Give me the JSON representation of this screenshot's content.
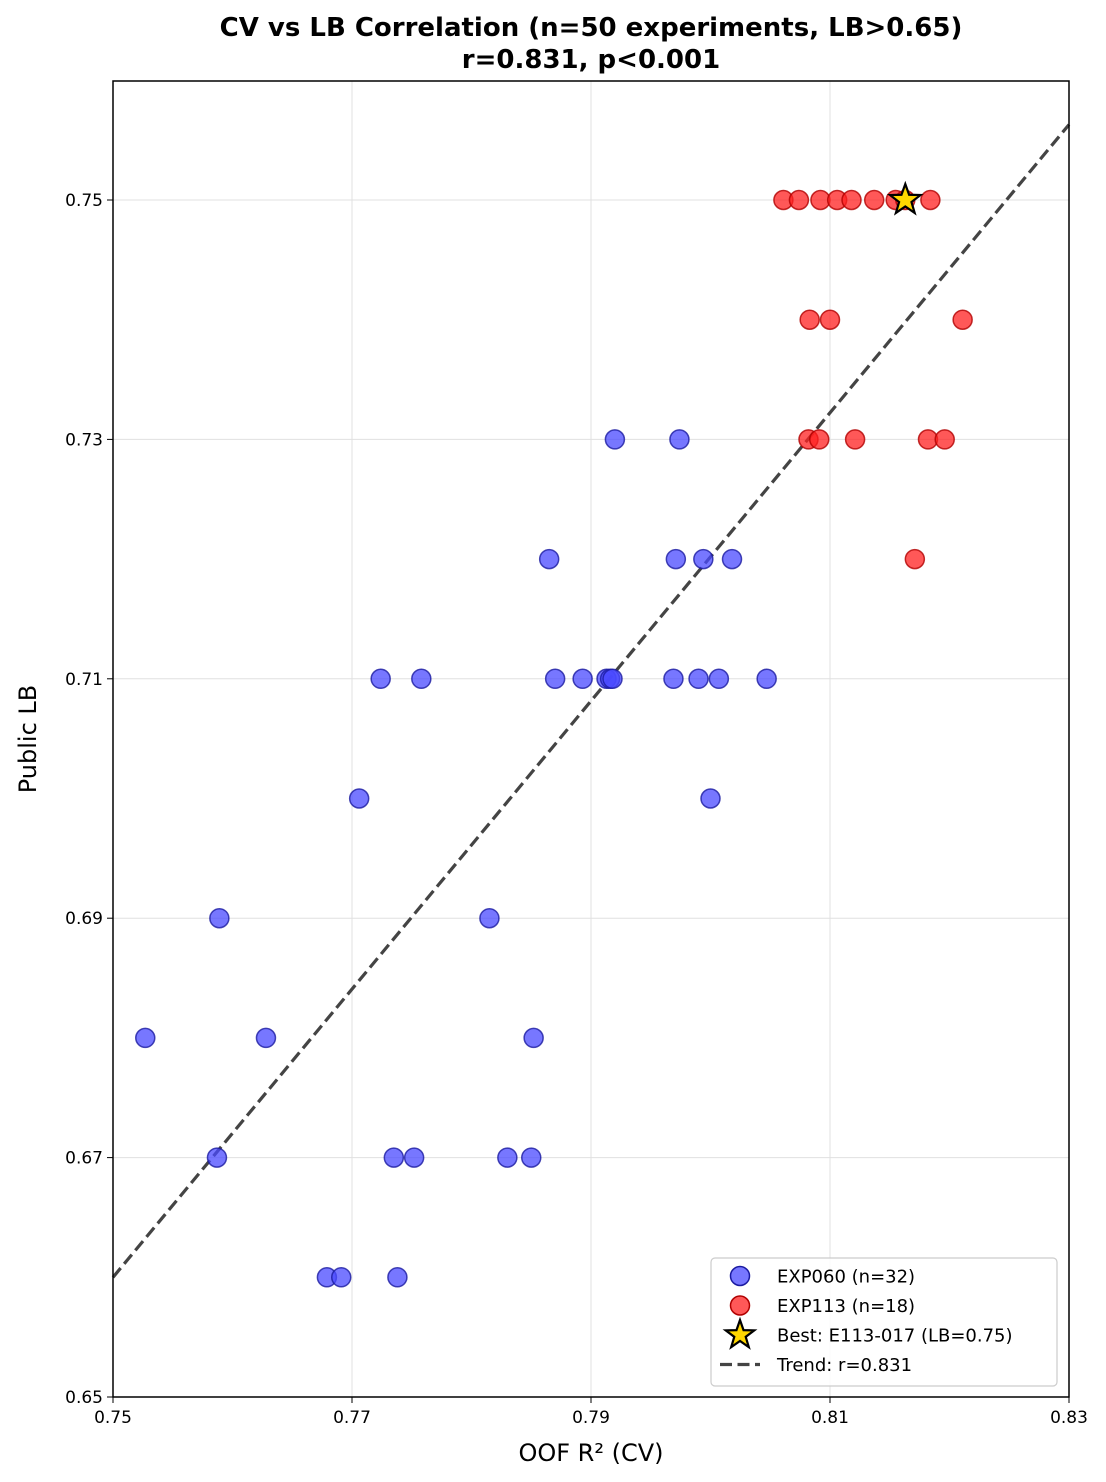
{
  "chart_data": {
    "type": "scatter",
    "title_line1": "CV vs LB Correlation (n=50 experiments, LB>0.65)",
    "title_line2": "r=0.831, p<0.001",
    "xlabel": "OOF R² (CV)",
    "ylabel": "Public LB",
    "xlim": [
      0.75,
      0.83
    ],
    "ylim": [
      0.65,
      0.76
    ],
    "x_ticks": [
      "0.75",
      "0.77",
      "0.79",
      "0.81",
      "0.83"
    ],
    "y_ticks": [
      "0.65",
      "0.67",
      "0.69",
      "0.71",
      "0.73",
      "0.75"
    ],
    "grid": true,
    "legend_position": "lower-right",
    "series": [
      {
        "name": "EXP060 (n=32)",
        "color": "#4a4aff",
        "points": [
          [
            0.7527,
            0.68
          ],
          [
            0.7589,
            0.69
          ],
          [
            0.7587,
            0.67
          ],
          [
            0.7628,
            0.68
          ],
          [
            0.7679,
            0.66
          ],
          [
            0.7691,
            0.66
          ],
          [
            0.7706,
            0.7
          ],
          [
            0.7724,
            0.71
          ],
          [
            0.7735,
            0.67
          ],
          [
            0.7738,
            0.66
          ],
          [
            0.7752,
            0.67
          ],
          [
            0.7758,
            0.71
          ],
          [
            0.7815,
            0.69
          ],
          [
            0.783,
            0.67
          ],
          [
            0.785,
            0.67
          ],
          [
            0.7852,
            0.68
          ],
          [
            0.7865,
            0.72
          ],
          [
            0.787,
            0.71
          ],
          [
            0.7893,
            0.71
          ],
          [
            0.7913,
            0.71
          ],
          [
            0.7916,
            0.71
          ],
          [
            0.792,
            0.73
          ],
          [
            0.7969,
            0.71
          ],
          [
            0.7971,
            0.72
          ],
          [
            0.7974,
            0.73
          ],
          [
            0.799,
            0.71
          ],
          [
            0.7994,
            0.72
          ],
          [
            0.8,
            0.7
          ],
          [
            0.8007,
            0.71
          ],
          [
            0.8018,
            0.72
          ],
          [
            0.8047,
            0.71
          ],
          [
            0.7918,
            0.71
          ]
        ]
      },
      {
        "name": "EXP113 (n=18)",
        "color": "#ff2020",
        "points": [
          [
            0.8061,
            0.75
          ],
          [
            0.8074,
            0.75
          ],
          [
            0.8092,
            0.75
          ],
          [
            0.8106,
            0.75
          ],
          [
            0.8118,
            0.75
          ],
          [
            0.8137,
            0.75
          ],
          [
            0.8155,
            0.75
          ],
          [
            0.8184,
            0.75
          ],
          [
            0.8083,
            0.74
          ],
          [
            0.81,
            0.74
          ],
          [
            0.8211,
            0.74
          ],
          [
            0.8082,
            0.73
          ],
          [
            0.8091,
            0.73
          ],
          [
            0.8121,
            0.73
          ],
          [
            0.8182,
            0.73
          ],
          [
            0.8196,
            0.73
          ],
          [
            0.8171,
            0.72
          ],
          [
            0.8163,
            0.75
          ]
        ]
      }
    ],
    "best_point": {
      "name": "Best: E113-017 (LB=0.75)",
      "x": 0.8163,
      "y": 0.75,
      "color": "#ffd700"
    },
    "trend": {
      "name": "Trend: r=0.831",
      "x0": 0.75,
      "y0": 0.66,
      "x1": 0.83,
      "y1": 0.7563,
      "color": "#444444"
    }
  }
}
